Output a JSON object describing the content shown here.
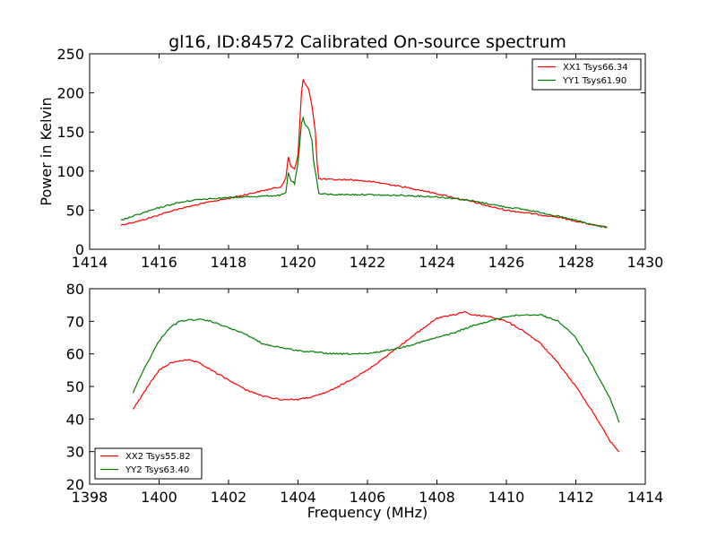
{
  "title": "gl16, ID:84572 Calibrated On-source spectrum",
  "chart_data": [
    {
      "type": "line",
      "title": "gl16, ID:84572 Calibrated On-source spectrum",
      "xlabel": "",
      "ylabel": "Power in Kelvin",
      "xlim": [
        1414,
        1430
      ],
      "ylim": [
        0,
        250
      ],
      "xticks": [
        "1414",
        "1416",
        "1418",
        "1420",
        "1422",
        "1424",
        "1426",
        "1428",
        "1430"
      ],
      "yticks": [
        "0",
        "50",
        "100",
        "150",
        "200",
        "250"
      ],
      "grid": false,
      "legend_placement": "top-right",
      "series": [
        {
          "name": "XX1 Tsys66.34",
          "color": "#ff0000",
          "x": [
            1414.9,
            1415.5,
            1416.0,
            1416.5,
            1417.0,
            1417.5,
            1418.0,
            1418.5,
            1419.0,
            1419.5,
            1419.65,
            1419.72,
            1419.8,
            1419.9,
            1420.0,
            1420.1,
            1420.15,
            1420.2,
            1420.3,
            1420.4,
            1420.5,
            1420.55,
            1420.6,
            1421.0,
            1421.5,
            1422.0,
            1422.5,
            1423.0,
            1423.5,
            1424.0,
            1424.5,
            1425.0,
            1425.5,
            1426.0,
            1426.5,
            1427.0,
            1427.5,
            1428.0,
            1428.5,
            1428.9
          ],
          "y": [
            31,
            37,
            44,
            51,
            56,
            61,
            65,
            70,
            75,
            80,
            90,
            118,
            106,
            103,
            120,
            200,
            217,
            212,
            205,
            185,
            150,
            110,
            90,
            89,
            89,
            87,
            84,
            80,
            76,
            71,
            66,
            61,
            55,
            50,
            47,
            44,
            41,
            36,
            31,
            28
          ]
        },
        {
          "name": "YY1 Tsys61.90",
          "color": "#008000",
          "x": [
            1414.9,
            1415.5,
            1416.0,
            1416.5,
            1417.0,
            1417.5,
            1418.0,
            1418.5,
            1419.0,
            1419.5,
            1419.65,
            1419.72,
            1419.8,
            1419.9,
            1420.0,
            1420.1,
            1420.15,
            1420.2,
            1420.3,
            1420.4,
            1420.45,
            1420.5,
            1420.6,
            1421.0,
            1421.5,
            1422.0,
            1422.5,
            1423.0,
            1423.5,
            1424.0,
            1424.5,
            1425.0,
            1425.5,
            1426.0,
            1426.5,
            1427.0,
            1427.5,
            1428.0,
            1428.5,
            1428.9
          ],
          "y": [
            37,
            46,
            53,
            59,
            63,
            65,
            66,
            67,
            68,
            69,
            72,
            98,
            88,
            84,
            110,
            160,
            168,
            160,
            155,
            140,
            112,
            100,
            71,
            70,
            70,
            70,
            69,
            69,
            68,
            67,
            65,
            62,
            58,
            54,
            51,
            47,
            42,
            37,
            31,
            28
          ]
        }
      ]
    },
    {
      "type": "line",
      "title": "",
      "xlabel": "Frequency (MHz)",
      "ylabel": "",
      "xlim": [
        1398,
        1414
      ],
      "ylim": [
        20,
        80
      ],
      "xticks": [
        "1398",
        "1400",
        "1402",
        "1404",
        "1406",
        "1408",
        "1410",
        "1412",
        "1414"
      ],
      "yticks": [
        "20",
        "30",
        "40",
        "50",
        "60",
        "70",
        "80"
      ],
      "grid": false,
      "legend_placement": "bottom-left",
      "series": [
        {
          "name": "XX2 Tsys55.82",
          "color": "#ff0000",
          "x": [
            1399.25,
            1399.5,
            1399.8,
            1400.0,
            1400.3,
            1400.6,
            1400.9,
            1401.2,
            1401.5,
            1402.0,
            1402.5,
            1403.0,
            1403.5,
            1404.0,
            1404.5,
            1405.0,
            1405.5,
            1406.0,
            1406.5,
            1407.0,
            1407.5,
            1408.0,
            1408.5,
            1408.8,
            1409.0,
            1409.5,
            1410.0,
            1410.5,
            1411.0,
            1411.5,
            1412.0,
            1412.5,
            1413.0,
            1413.25
          ],
          "y": [
            43,
            47,
            52,
            55,
            57,
            58,
            58,
            57,
            55,
            52,
            49,
            47,
            46,
            46,
            47,
            49,
            52,
            55,
            59,
            63,
            67,
            71,
            72,
            73,
            72,
            71.5,
            70,
            67,
            63,
            57,
            50,
            42,
            33,
            30
          ]
        },
        {
          "name": "YY2 Tsys63.40",
          "color": "#008000",
          "x": [
            1399.25,
            1399.5,
            1399.8,
            1400.0,
            1400.3,
            1400.6,
            1400.9,
            1401.2,
            1401.5,
            1402.0,
            1402.5,
            1403.0,
            1403.5,
            1404.0,
            1404.5,
            1405.0,
            1405.5,
            1406.0,
            1406.5,
            1407.0,
            1407.5,
            1408.0,
            1408.5,
            1409.0,
            1409.5,
            1410.0,
            1410.5,
            1411.0,
            1411.5,
            1412.0,
            1412.5,
            1413.0,
            1413.25
          ],
          "y": [
            48,
            54,
            60,
            64,
            68,
            70,
            70.5,
            70.5,
            70,
            68,
            66,
            63,
            62,
            61,
            60.5,
            60,
            60,
            60,
            61,
            62,
            63.5,
            65,
            66.5,
            68.5,
            70,
            71.5,
            72,
            72,
            70,
            65,
            56,
            46,
            39
          ]
        }
      ]
    }
  ]
}
